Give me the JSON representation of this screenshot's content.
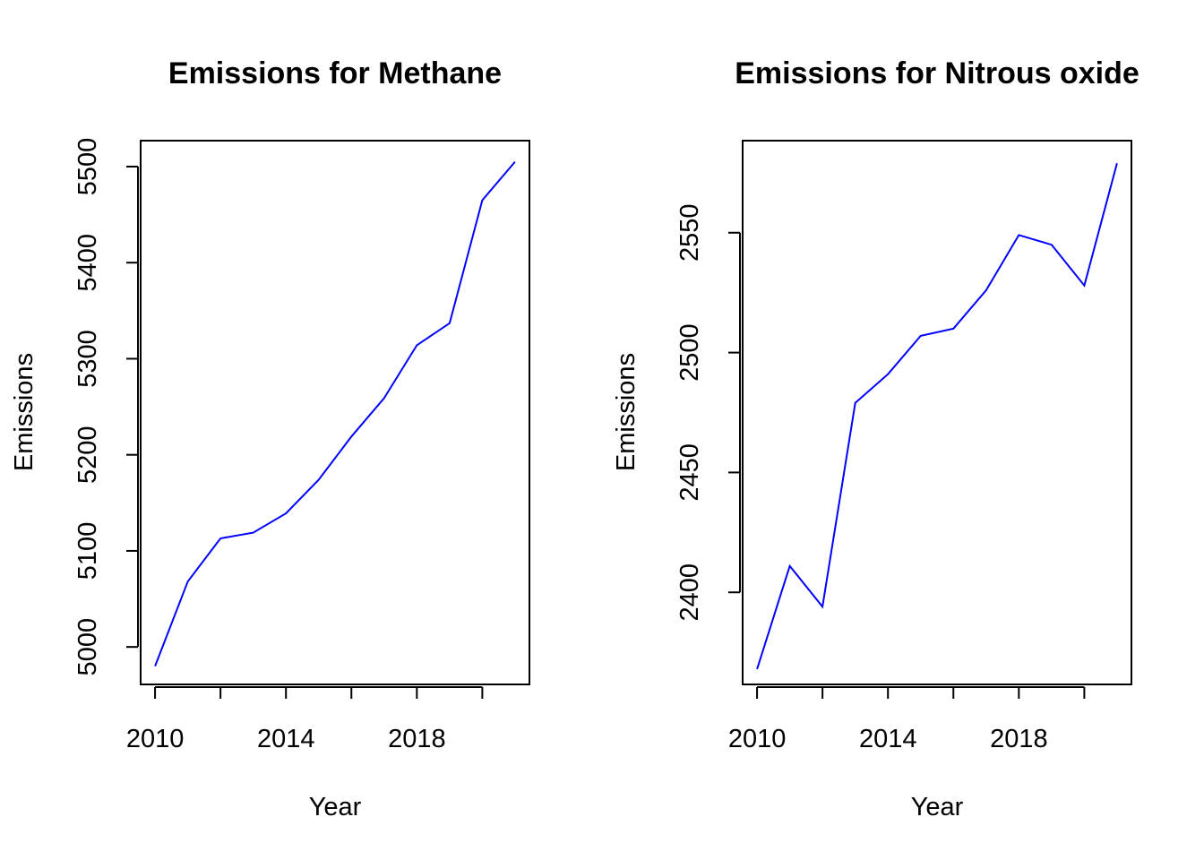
{
  "chart_data": [
    {
      "type": "line",
      "title": "Emissions for Methane",
      "xlabel": "Year",
      "ylabel": "Emissions",
      "x": [
        2010,
        2011,
        2012,
        2013,
        2014,
        2015,
        2016,
        2017,
        2018,
        2019,
        2020,
        2021
      ],
      "series": [
        {
          "values": [
            4980,
            5068,
            5113,
            5119,
            5139,
            5174,
            5219,
            5259,
            5314,
            5337,
            5465,
            5505
          ],
          "color": "#0000ff"
        }
      ],
      "xlim": [
        2009.56,
        2021.44
      ],
      "ylim": [
        4961,
        5527
      ],
      "xticks": [
        2010,
        2014,
        2018
      ],
      "xtick_minor": [
        2010,
        2012,
        2014,
        2016,
        2018,
        2020
      ],
      "yticks": [
        5000,
        5100,
        5200,
        5300,
        5400,
        5500
      ],
      "grid": false
    },
    {
      "type": "line",
      "title": "Emissions for Nitrous oxide",
      "xlabel": "Year",
      "ylabel": "Emissions",
      "x": [
        2010,
        2011,
        2012,
        2013,
        2014,
        2015,
        2016,
        2017,
        2018,
        2019,
        2020,
        2021
      ],
      "series": [
        {
          "values": [
            2368,
            2411,
            2394,
            2479,
            2491,
            2507,
            2510,
            2526,
            2549,
            2545,
            2528,
            2579
          ],
          "color": "#0000ff"
        }
      ],
      "xlim": [
        2009.56,
        2021.44
      ],
      "ylim": [
        2361.6,
        2588.4
      ],
      "xticks": [
        2010,
        2014,
        2018
      ],
      "xtick_minor": [
        2010,
        2012,
        2014,
        2016,
        2018,
        2020
      ],
      "yticks": [
        2400,
        2450,
        2500,
        2550
      ],
      "grid": false
    }
  ]
}
